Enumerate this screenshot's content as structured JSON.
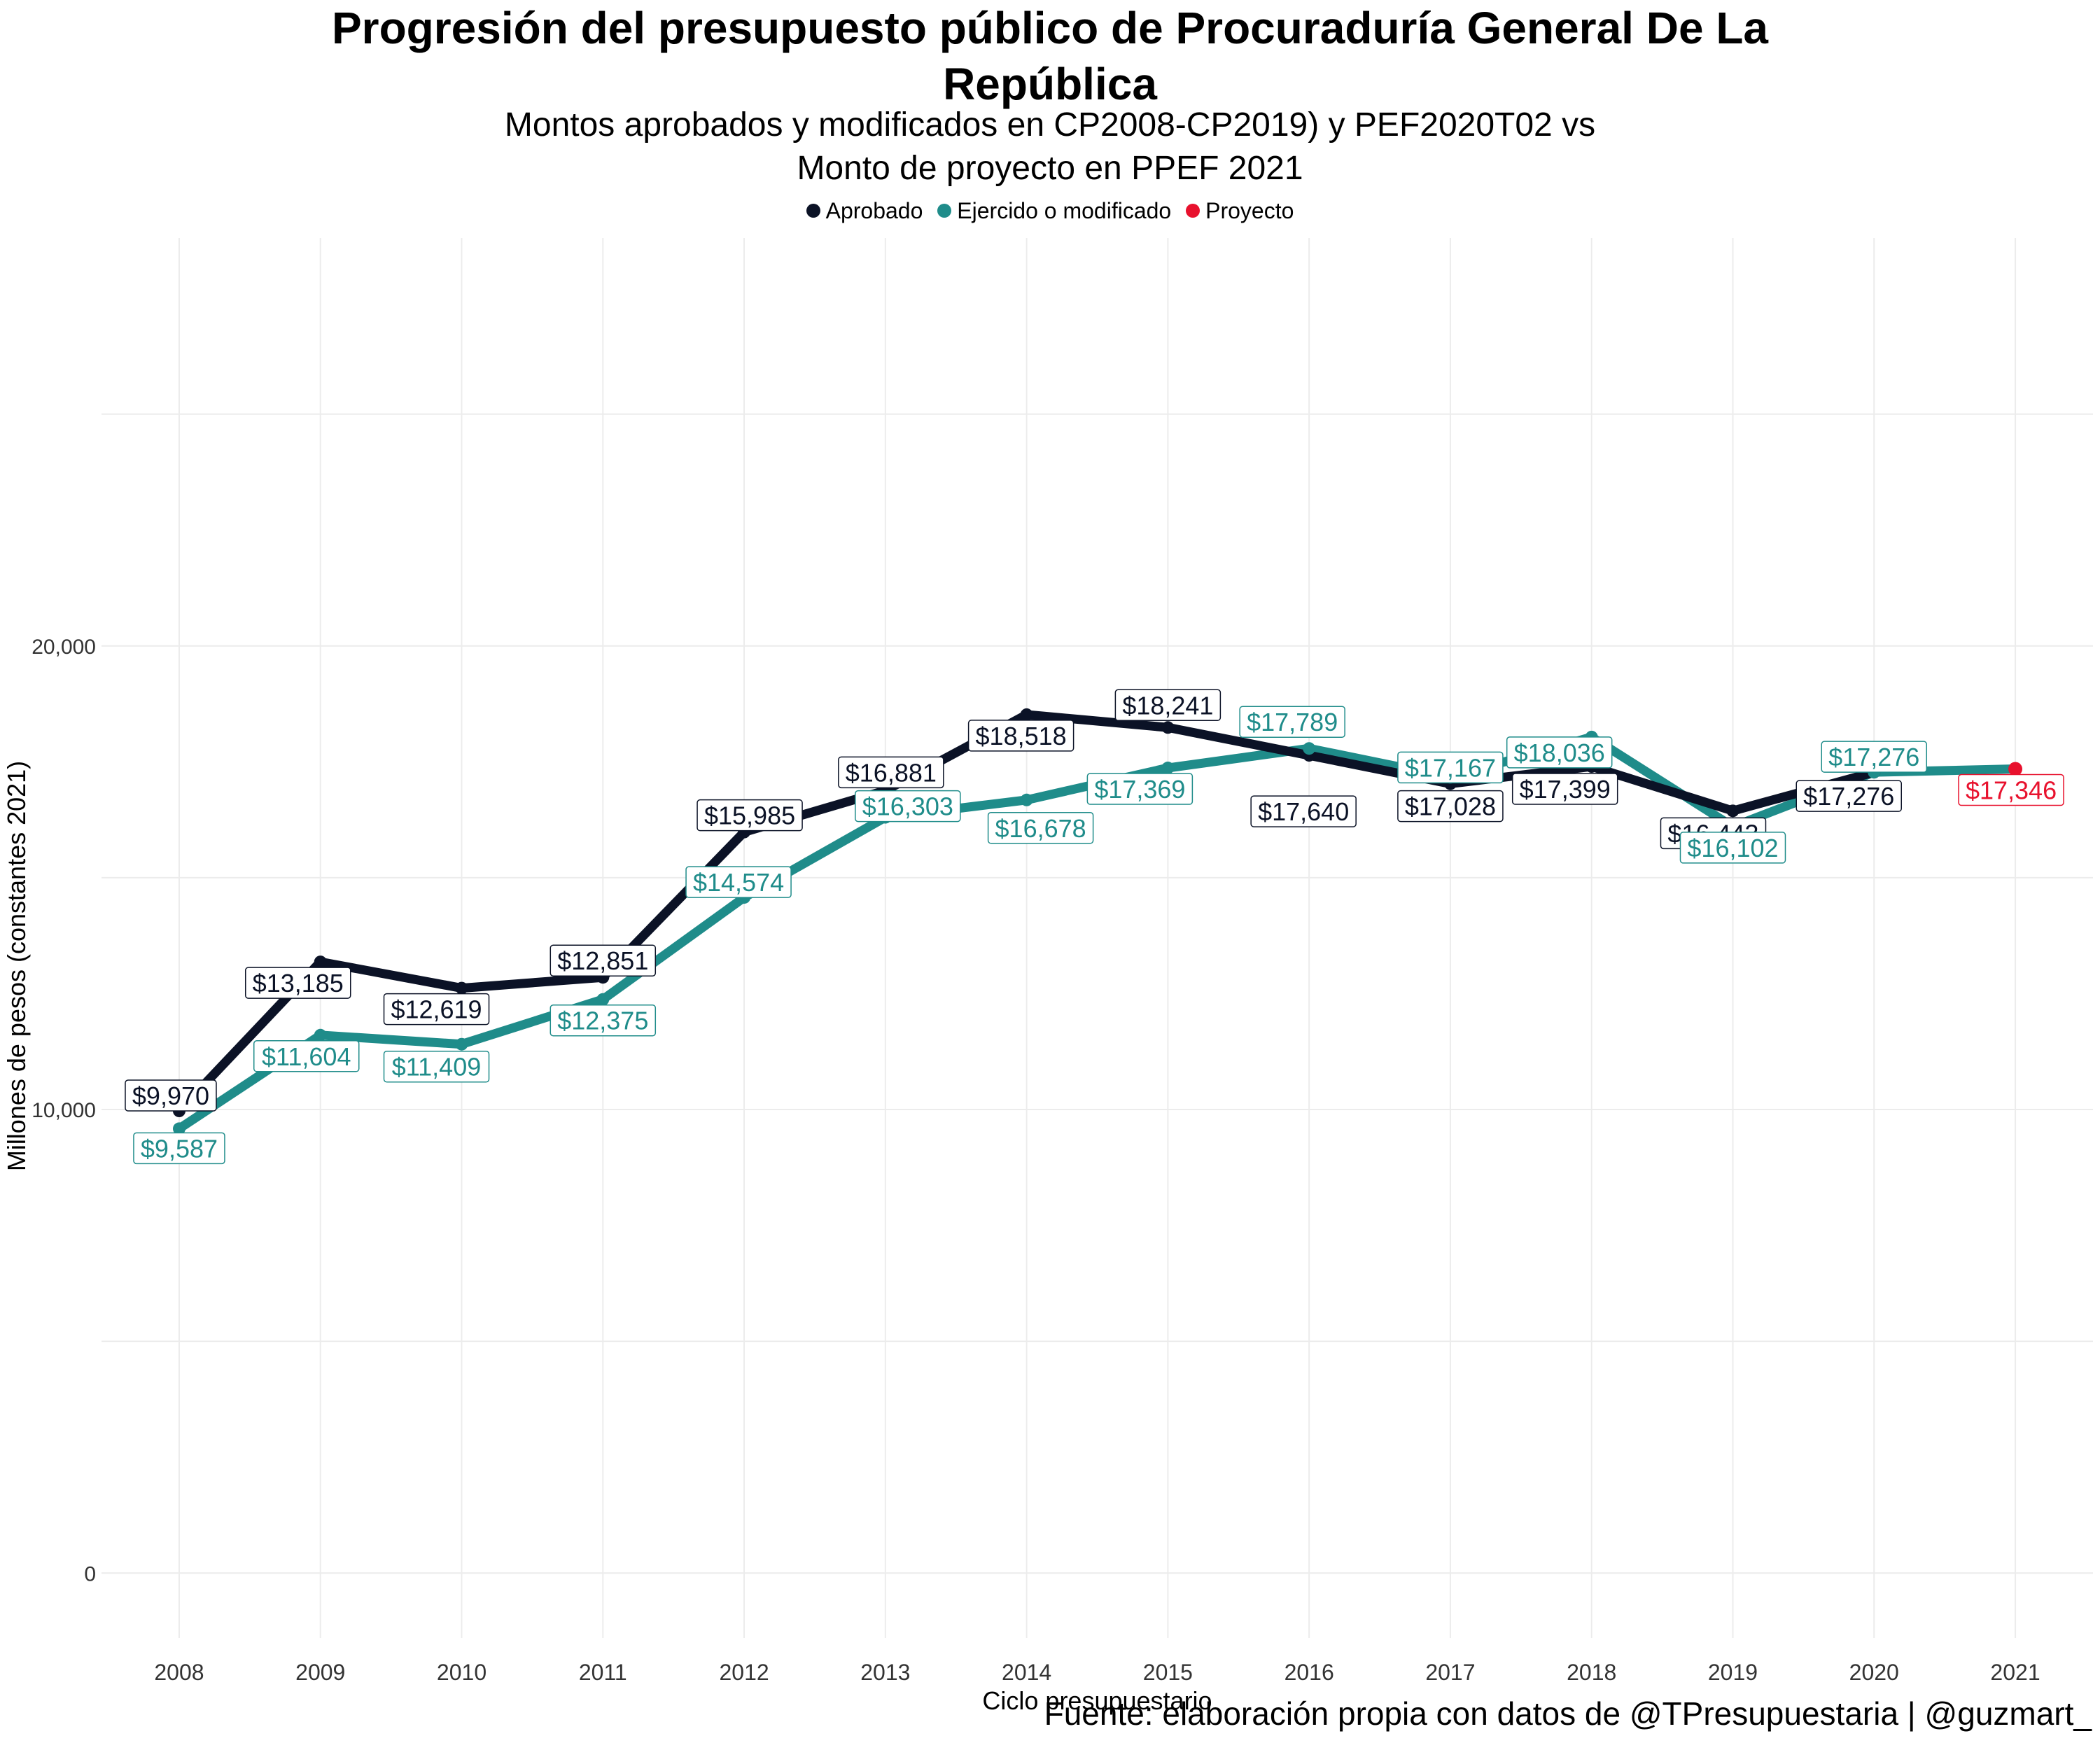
{
  "chart_data": {
    "type": "line",
    "title": "Progresión del presupuesto público de Procuraduría General De La República",
    "title_lines": [
      "Progresión del presupuesto público de Procuraduría General De La",
      "República"
    ],
    "subtitle_lines": [
      "Montos aprobados y modificados en CP2008-CP2019) y PEF2020T02 vs",
      "Monto de proyecto en PPEF 2021"
    ],
    "xlabel": "Ciclo presupuestario",
    "ylabel": "Millones de pesos (constantes 2021)",
    "x": [
      2008,
      2009,
      2010,
      2011,
      2012,
      2013,
      2014,
      2015,
      2016,
      2017,
      2018,
      2019,
      2020,
      2021
    ],
    "ylim": [
      -1400,
      28800
    ],
    "yticks": [
      0,
      10000,
      20000
    ],
    "ytick_labels": [
      "0",
      "10,000",
      "20,000"
    ],
    "grid": true,
    "legend_position": "top",
    "series": [
      {
        "name": "Aprobado",
        "color": "#0b1226",
        "x": [
          2008,
          2009,
          2010,
          2011,
          2012,
          2013,
          2014,
          2015,
          2016,
          2017,
          2018,
          2019,
          2020
        ],
        "values": [
          9970,
          13185,
          12619,
          12851,
          15985,
          16881,
          18518,
          18241,
          17640,
          17028,
          17399,
          16443,
          17276
        ],
        "labels": [
          "$9,970",
          "$13,185",
          "$12,619",
          "$12,851",
          "$15,985",
          "$16,881",
          "$18,518",
          "$18,241",
          "$17,640",
          "$17,028",
          "$17,399",
          "$16,443",
          "$17,276"
        ]
      },
      {
        "name": "Ejercido o modificado",
        "color": "#1f8c8a",
        "x": [
          2008,
          2009,
          2010,
          2011,
          2012,
          2013,
          2014,
          2015,
          2016,
          2017,
          2018,
          2019,
          2020,
          2021
        ],
        "values": [
          9587,
          11604,
          11409,
          12375,
          14574,
          16303,
          16678,
          17369,
          17789,
          17167,
          18036,
          16102,
          17276,
          17346
        ],
        "labels": [
          "$9,587",
          "$11,604",
          "$11,409",
          "$12,375",
          "$14,574",
          "$16,303",
          "$16,678",
          "$17,369",
          "$17,789",
          "$17,167",
          "$18,036",
          "$16,102",
          "$17,276",
          null
        ]
      },
      {
        "name": "Proyecto",
        "color": "#e8112d",
        "x": [
          2021
        ],
        "values": [
          17346
        ],
        "labels": [
          "$17,346"
        ]
      }
    ],
    "source": "Fuente: elaboración propia con datos de @TPresupuestaria | @guzmart_"
  }
}
